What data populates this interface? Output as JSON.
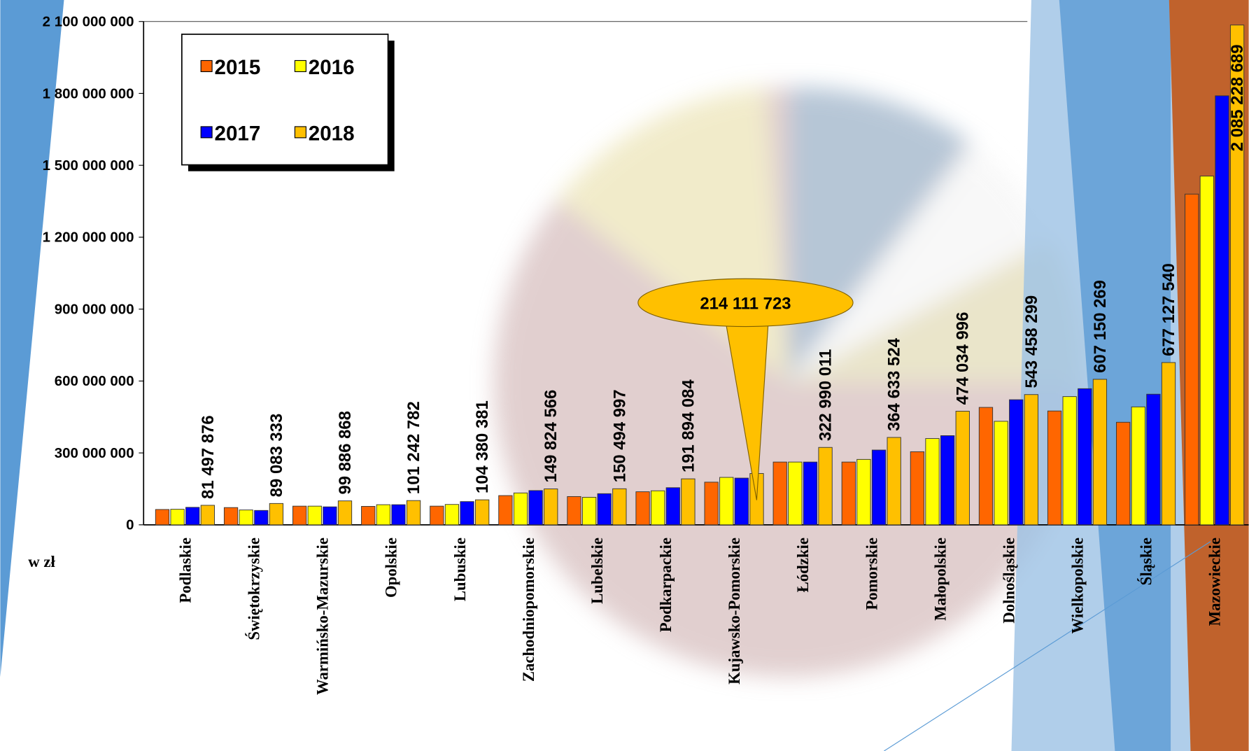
{
  "chart_data": {
    "type": "bar",
    "unit_label": "w zł",
    "categories": [
      "Podlaskie",
      "Świętokrzyskie",
      "Warmińsko-Mazurskie",
      "Opolskie",
      "Lubuskie",
      "Zachodniopomorskie",
      "Lubelskie",
      "Podkarpackie",
      "Kujawsko-Pomorskie",
      "Łódzkie",
      "Pomorskie",
      "Małopolskie",
      "Dolnośląskie",
      "Wielkopolskie",
      "Śląskie",
      "Mazowieckie"
    ],
    "series": [
      {
        "name": "2015",
        "color": "#ff6600",
        "values": [
          64000000,
          72000000,
          78000000,
          77000000,
          78000000,
          122000000,
          118000000,
          138000000,
          178000000,
          262000000,
          262000000,
          305000000,
          490000000,
          475000000,
          428000000,
          1380000000
        ]
      },
      {
        "name": "2016",
        "color": "#ffff00",
        "values": [
          65000000,
          62000000,
          78000000,
          84000000,
          85000000,
          133000000,
          115000000,
          142000000,
          198000000,
          262000000,
          273000000,
          360000000,
          432000000,
          535000000,
          492000000,
          1455000000
        ]
      },
      {
        "name": "2017",
        "color": "#0000ff",
        "values": [
          73000000,
          60000000,
          75000000,
          84000000,
          97000000,
          143000000,
          130000000,
          155000000,
          195000000,
          262000000,
          312000000,
          372000000,
          522000000,
          568000000,
          545000000,
          1790000000
        ]
      },
      {
        "name": "2018",
        "color": "#ffc000",
        "values": [
          81497876,
          89083333,
          99886868,
          101242782,
          104380381,
          149824566,
          150494997,
          191894084,
          214111723,
          322990011,
          364633524,
          474034996,
          543458299,
          607150269,
          677127540,
          2085228689
        ],
        "value_labels": [
          "81 497 876",
          "89 083 333",
          "99 886 868",
          "101 242 782",
          "104 380 381",
          "149 824 566",
          "150 494 997",
          "191 894 084",
          "214 111 723",
          "322 990 011",
          "364 633 524",
          "474 034 996",
          "543 458 299",
          "607 150 269",
          "677 127 540",
          "2 085 228 689"
        ]
      }
    ],
    "ylim": [
      0,
      2100000000
    ],
    "yticks": [
      0,
      {
        "value": 300000000,
        "label": "300 000 000"
      },
      {
        "value": 600000000,
        "label": "600 000 000"
      },
      {
        "value": 900000000,
        "label": "900 000 000"
      },
      {
        "value": 1200000000,
        "label": "1 200 000 000"
      },
      {
        "value": 1500000000,
        "label": "1 500 000 000"
      },
      {
        "value": 1800000000,
        "label": "1 800 000 000"
      },
      {
        "value": 2100000000,
        "label": "2 100 000 000"
      }
    ],
    "grid": false,
    "legend": "top-left"
  }
}
